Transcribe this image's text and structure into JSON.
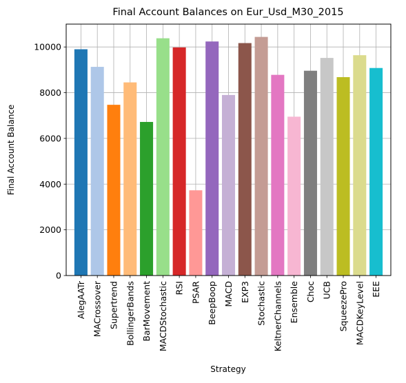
{
  "chart_data": {
    "type": "bar",
    "title": "Final Account Balances on Eur_Usd_M30_2015",
    "xlabel": "Strategy",
    "ylabel": "Final Account Balance",
    "ylim": [
      0,
      11000
    ],
    "yticks": [
      0,
      2000,
      4000,
      6000,
      8000,
      10000
    ],
    "grid": true,
    "categories": [
      "AlegAATr",
      "MACrossover",
      "Supertrend",
      "BollingerBands",
      "BarMovement",
      "MACDStochastic",
      "RSI",
      "PSAR",
      "BeepBoop",
      "MACD",
      "EXP3",
      "Stochastic",
      "KeltnerChannels",
      "Ensemble",
      "Choc",
      "UCB",
      "SqueezePro",
      "MACDKeyLevel",
      "EEE"
    ],
    "values": [
      9900,
      9130,
      7470,
      8450,
      6720,
      10380,
      9980,
      3730,
      10240,
      7900,
      10170,
      10440,
      8780,
      6950,
      8960,
      9520,
      8680,
      9640,
      9080
    ],
    "colors": [
      "#1f77b4",
      "#aec7e8",
      "#ff7f0e",
      "#ffbb78",
      "#2ca02c",
      "#98df8a",
      "#d62728",
      "#ff9896",
      "#9467bd",
      "#c5b0d5",
      "#8c564b",
      "#c49c94",
      "#e377c2",
      "#f7b6d2",
      "#7f7f7f",
      "#c7c7c7",
      "#bcbd22",
      "#dbdb8d",
      "#17becf"
    ]
  }
}
